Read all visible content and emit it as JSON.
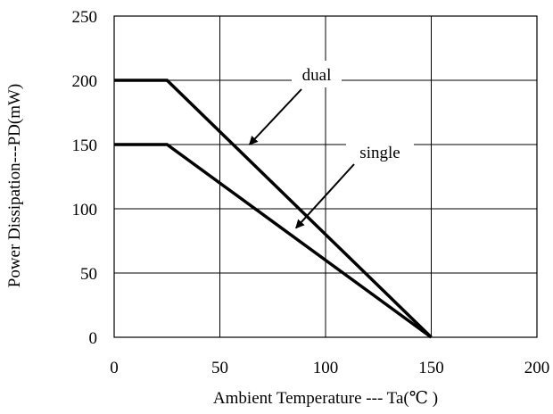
{
  "chart_data": {
    "type": "line",
    "title": "",
    "xlabel": "Ambient Temperature --- Ta(℃ )",
    "ylabel": "Power Dissipation---PD(mW)",
    "xlim": [
      0,
      200
    ],
    "ylim": [
      0,
      250
    ],
    "x_ticks": [
      0,
      50,
      100,
      150,
      200
    ],
    "y_ticks": [
      0,
      50,
      100,
      150,
      200,
      250
    ],
    "grid": true,
    "series": [
      {
        "name": "dual",
        "points": [
          [
            0,
            200
          ],
          [
            25,
            200
          ],
          [
            150,
            0
          ]
        ]
      },
      {
        "name": "single",
        "points": [
          [
            0,
            150
          ],
          [
            25,
            150
          ],
          [
            150,
            0
          ]
        ]
      }
    ],
    "annotations": [
      {
        "text": "dual",
        "arrow_to": [
          64,
          150
        ]
      },
      {
        "text": "single",
        "arrow_to": [
          86,
          85
        ]
      }
    ]
  }
}
